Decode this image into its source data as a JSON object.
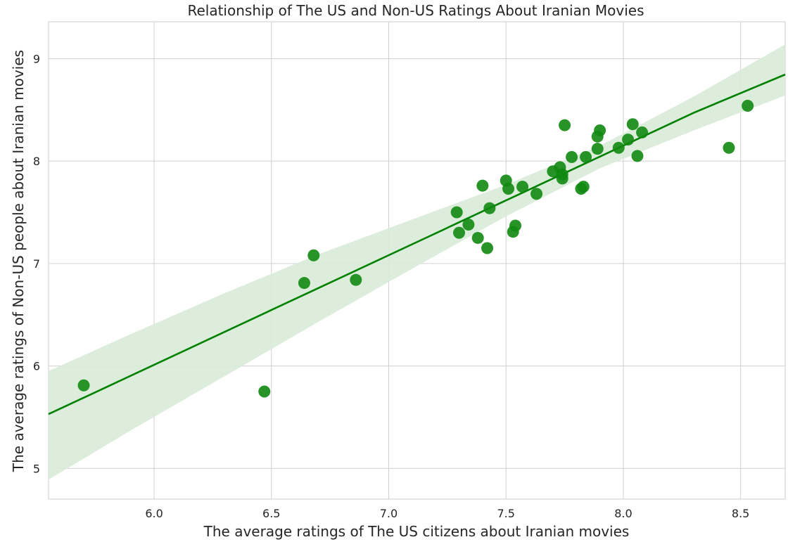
{
  "chart_data": {
    "type": "scatter",
    "title": "Relationship of The US and Non-US Ratings About Iranian Movies",
    "xlabel": "The average ratings of The US citizens about Iranian movies",
    "ylabel": "The average ratings of Non-US people about Iranian movies",
    "xlim": [
      5.55,
      8.69
    ],
    "ylim": [
      4.7,
      9.36
    ],
    "xticks": [
      "6.0",
      "6.5",
      "7.0",
      "7.5",
      "8.0",
      "8.5"
    ],
    "yticks": [
      "5",
      "6",
      "7",
      "8",
      "9"
    ],
    "grid": true,
    "colors": {
      "points": "#118811",
      "line": "#008000",
      "band": "#d8ebd8",
      "grid": "#d0d0d0"
    },
    "regression": {
      "x": [
        5.55,
        5.9,
        6.3,
        6.7,
        7.1,
        7.5,
        7.9,
        8.3,
        8.69
      ],
      "y": [
        5.53,
        5.904,
        6.332,
        6.76,
        7.188,
        7.616,
        8.044,
        8.472,
        8.845
      ],
      "lower": [
        4.89,
        5.37,
        5.9,
        6.43,
        6.95,
        7.46,
        7.93,
        8.3,
        8.64
      ],
      "upper": [
        5.95,
        6.31,
        6.71,
        7.09,
        7.43,
        7.77,
        8.15,
        8.63,
        9.14
      ]
    },
    "series": [
      {
        "x": [
          5.7,
          6.47,
          6.64,
          6.68,
          6.86,
          7.29,
          7.3,
          7.34,
          7.38,
          7.4,
          7.42,
          7.43,
          7.5,
          7.51,
          7.53,
          7.54,
          7.57,
          7.63,
          7.7,
          7.73,
          7.74,
          7.74,
          7.75,
          7.78,
          7.82,
          7.83,
          7.84,
          7.89,
          7.89,
          7.9,
          7.98,
          8.02,
          8.04,
          8.06,
          8.08,
          8.45,
          8.53
        ],
        "y": [
          5.81,
          5.75,
          6.81,
          7.08,
          6.84,
          7.5,
          7.3,
          7.38,
          7.25,
          7.76,
          7.15,
          7.54,
          7.81,
          7.73,
          7.31,
          7.37,
          7.75,
          7.68,
          7.9,
          7.94,
          7.87,
          7.83,
          8.35,
          8.04,
          7.73,
          7.75,
          8.04,
          8.12,
          8.24,
          8.3,
          8.13,
          8.21,
          8.36,
          8.05,
          8.28,
          8.13,
          8.54
        ]
      }
    ]
  }
}
